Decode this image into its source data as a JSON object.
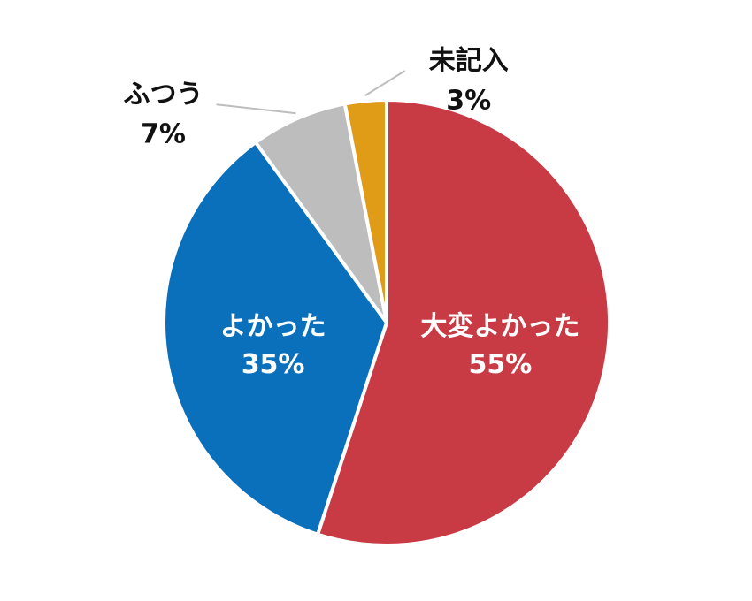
{
  "chart_data": {
    "type": "pie",
    "categories": [
      "大変よかった",
      "よかった",
      "ふつう",
      "未記入"
    ],
    "values": [
      55,
      35,
      7,
      3
    ],
    "value_labels": [
      "55%",
      "35%",
      "7%",
      "3%"
    ],
    "colors": [
      "#c83a44",
      "#0a70bc",
      "#bdbdbd",
      "#e09b17"
    ]
  }
}
